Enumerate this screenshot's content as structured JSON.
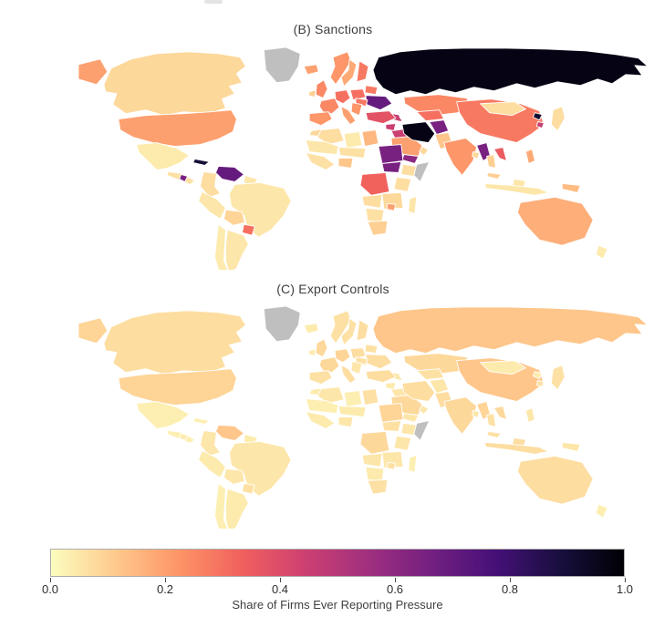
{
  "page": {
    "background": "#ffffff"
  },
  "figure": {
    "panel_b": {
      "title": "(B) Sanctions"
    },
    "panel_c": {
      "title": "(C) Export Controls"
    },
    "colorbar": {
      "label": "Share of Firms Ever Reporting Pressure",
      "ticks": [
        "0.0",
        "0.2",
        "0.4",
        "0.6",
        "0.8",
        "1.0"
      ],
      "min": 0,
      "max": 1,
      "colormap_name": "magma_r",
      "colormap_stops": [
        "#fcfdbf",
        "#feca8d",
        "#fd9567",
        "#f1605d",
        "#cd4071",
        "#9f2f7f",
        "#721f81",
        "#451077",
        "#180f3e",
        "#000004"
      ],
      "no_data_color": "#bfbfbf",
      "ocean_color": "#ffffff"
    }
  },
  "chart_data": [
    {
      "type": "heatmap",
      "subtype": "choropleth_world_map",
      "title": "(B) Sanctions",
      "value_label": "Share of Firms Ever Reporting Pressure",
      "range": [
        0,
        1
      ],
      "legend_position": "shared bottom colorbar",
      "no_data_regions": [
        "greenland",
        "somalia"
      ],
      "values": {
        "greenland": null,
        "canada": 0.08,
        "alaska": 0.2,
        "usa": 0.2,
        "mexico": 0.04,
        "cuba": 0.9,
        "central_america": 0.06,
        "nicaragua": 0.65,
        "colombia": 0.07,
        "venezuela": 0.7,
        "guyanas": 0.05,
        "brazil": 0.05,
        "peru": 0.05,
        "bolivia": 0.09,
        "paraguay": 0.3,
        "argentina": 0.05,
        "chile": 0.04,
        "iceland": 0.2,
        "ireland": 0.1,
        "uk": 0.25,
        "norway": 0.22,
        "sweden": 0.18,
        "finland": 0.28,
        "germany": 0.3,
        "poland": 0.3,
        "belarus": 0.28,
        "ukraine": 0.7,
        "romania": 0.28,
        "balkans": 0.22,
        "italy": 0.2,
        "france": 0.25,
        "iberia": 0.22,
        "russia": 0.97,
        "kazakhstan": 0.25,
        "turkmen_uzbek": 0.3,
        "caucasus": 0.45,
        "turkey": 0.38,
        "syria": 0.45,
        "iraq": 0.45,
        "saudi": 0.2,
        "yemen": 0.6,
        "oman": 0.08,
        "iran": 0.97,
        "afghanistan": 0.65,
        "pakistan": 0.12,
        "india": 0.22,
        "bangladesh": 0.08,
        "china": 0.28,
        "mongolia": 0.07,
        "north_korea": 0.92,
        "south_korea": 0.45,
        "japan": 0.07,
        "myanmar": 0.65,
        "vietnam_laos": 0.35,
        "thailand": 0.1,
        "malaysia": 0.1,
        "borneo": 0.05,
        "indonesia": 0.05,
        "philippines": 0.18,
        "png": 0.14,
        "australia": 0.17,
        "new_zealand": 0.04,
        "morocco": 0.08,
        "algeria": 0.07,
        "libya": 0.04,
        "egypt": 0.15,
        "mauritania_mali": 0.05,
        "sahel": 0.06,
        "west_africa": 0.06,
        "nigeria": 0.12,
        "sudan": 0.65,
        "south_sudan": 0.65,
        "ethiopia": 0.07,
        "somalia": null,
        "kenya_tanzania": 0.07,
        "drcongo": 0.33,
        "angola": 0.07,
        "zambia_mozambique": 0.08,
        "zimbabwe": 0.2,
        "namibia_botswana": 0.06,
        "south_africa": 0.1,
        "madagascar": 0.05
      }
    },
    {
      "type": "heatmap",
      "subtype": "choropleth_world_map",
      "title": "(C) Export Controls",
      "value_label": "Share of Firms Ever Reporting Pressure",
      "range": [
        0,
        1
      ],
      "legend_position": "shared bottom colorbar",
      "no_data_regions": [
        "greenland",
        "somalia"
      ],
      "values": {
        "greenland": null,
        "canada": 0.07,
        "alaska": 0.09,
        "usa": 0.09,
        "mexico": 0.03,
        "cuba": 0.03,
        "central_america": 0.03,
        "nicaragua": 0.04,
        "colombia": 0.05,
        "venezuela": 0.12,
        "guyanas": 0.04,
        "brazil": 0.05,
        "peru": 0.04,
        "bolivia": 0.05,
        "paraguay": 0.06,
        "argentina": 0.04,
        "chile": 0.03,
        "iceland": 0.04,
        "ireland": 0.04,
        "uk": 0.08,
        "norway": 0.06,
        "sweden": 0.06,
        "finland": 0.07,
        "germany": 0.09,
        "poland": 0.07,
        "belarus": 0.06,
        "ukraine": 0.07,
        "romania": 0.06,
        "balkans": 0.05,
        "italy": 0.07,
        "france": 0.08,
        "iberia": 0.06,
        "russia": 0.12,
        "kazakhstan": 0.08,
        "turkmen_uzbek": 0.06,
        "caucasus": 0.05,
        "turkey": 0.07,
        "syria": 0.04,
        "iraq": 0.05,
        "saudi": 0.08,
        "yemen": 0.05,
        "oman": 0.05,
        "iran": 0.07,
        "afghanistan": 0.05,
        "pakistan": 0.07,
        "india": 0.08,
        "bangladesh": 0.05,
        "china": 0.12,
        "mongolia": 0.04,
        "north_korea": 0.04,
        "south_korea": 0.06,
        "japan": 0.06,
        "myanmar": 0.09,
        "vietnam_laos": 0.08,
        "thailand": 0.06,
        "malaysia": 0.06,
        "borneo": 0.07,
        "indonesia": 0.07,
        "philippines": 0.05,
        "png": 0.05,
        "australia": 0.07,
        "new_zealand": 0.03,
        "morocco": 0.04,
        "algeria": 0.05,
        "libya": 0.03,
        "egypt": 0.06,
        "mauritania_mali": 0.03,
        "sahel": 0.04,
        "west_africa": 0.04,
        "nigeria": 0.05,
        "sudan": 0.09,
        "south_sudan": 0.06,
        "ethiopia": 0.05,
        "somalia": null,
        "kenya_tanzania": 0.05,
        "drcongo": 0.08,
        "angola": 0.05,
        "zambia_mozambique": 0.05,
        "zimbabwe": 0.06,
        "namibia_botswana": 0.04,
        "south_africa": 0.06,
        "madagascar": 0.03
      }
    }
  ]
}
